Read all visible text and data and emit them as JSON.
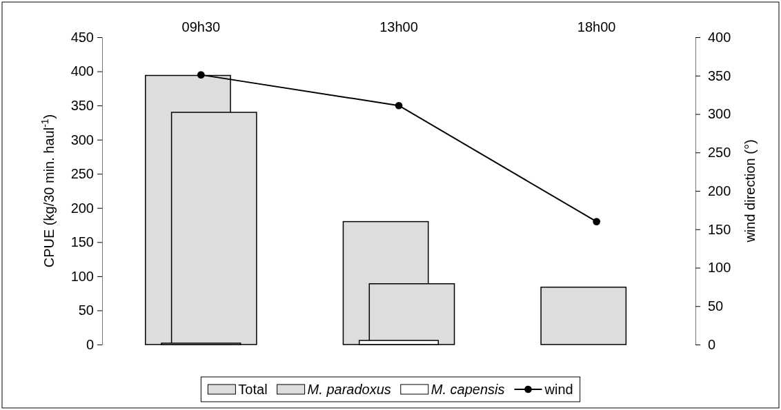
{
  "chart_data": {
    "type": "bar",
    "categories": [
      "09h30",
      "13h00",
      "18h00"
    ],
    "ylabel": "CPUE (kg/30 min. haul$^{-1}$)",
    "y2label": "wind direction (°)",
    "ylim": [
      0,
      450
    ],
    "yticks": [
      0,
      50,
      100,
      150,
      200,
      250,
      300,
      350,
      400,
      450
    ],
    "y2lim": [
      0,
      400
    ],
    "y2ticks": [
      0,
      50,
      100,
      150,
      200,
      250,
      300,
      350,
      400
    ],
    "series": [
      {
        "name": "Total",
        "color": "#dddddd",
        "values": [
          394,
          180,
          84
        ]
      },
      {
        "name": "M. paradoxus",
        "color": "#dddddd",
        "values": [
          340,
          89,
          0
        ]
      },
      {
        "name": "M. capensis",
        "color": "#ffffff",
        "values": [
          2,
          6,
          0
        ]
      },
      {
        "name": "wind",
        "type": "line",
        "axis": "y2",
        "color": "#000000",
        "marker": "circle",
        "values": [
          351,
          311,
          160
        ]
      }
    ],
    "grid": false,
    "legend": "bottom"
  }
}
